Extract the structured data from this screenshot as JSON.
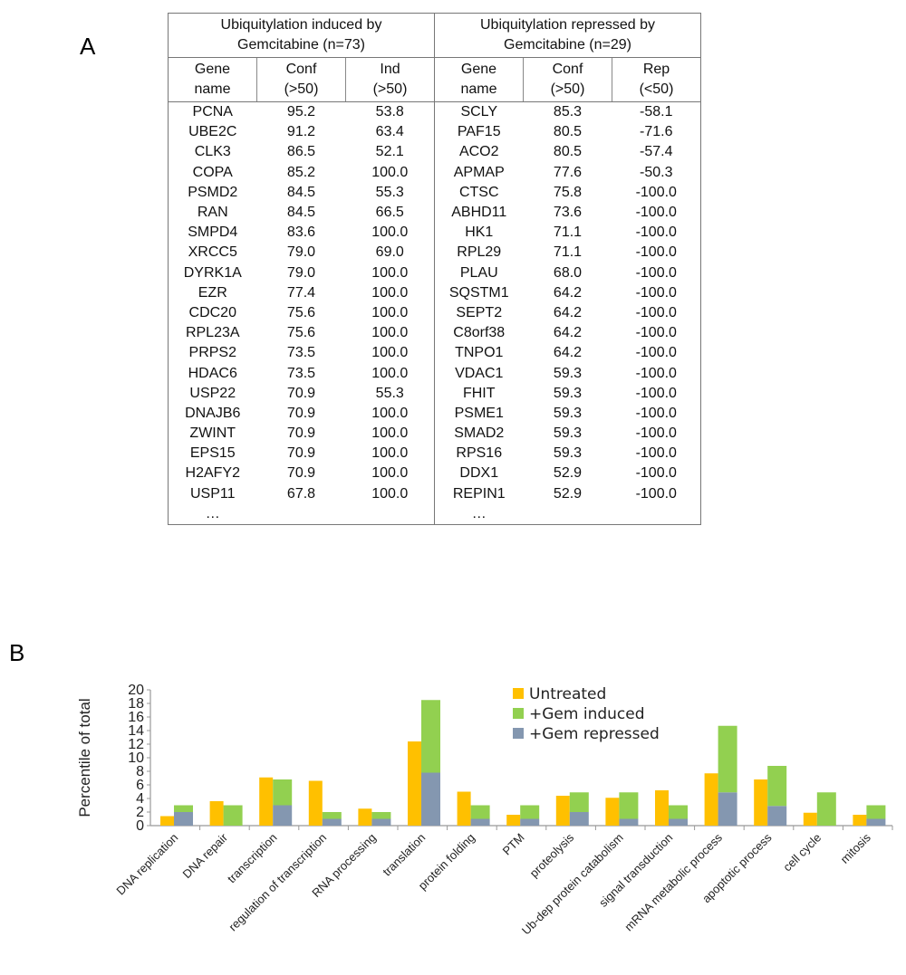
{
  "panels": {
    "a": "A",
    "b": "B"
  },
  "table": {
    "induced_header": "Ubiquitylation induced by Gemcitabine (n=73)",
    "repressed_header": "Ubiquitylation repressed by Gemcitabine (n=29)",
    "columns": [
      [
        "Gene",
        "name"
      ],
      [
        "Conf",
        "(>50)"
      ],
      [
        "Ind",
        "(>50)"
      ],
      [
        "Gene",
        "name"
      ],
      [
        "Conf",
        "(>50)"
      ],
      [
        "Rep",
        "(<50)"
      ]
    ],
    "rows": [
      [
        "PCNA",
        "95.2",
        "53.8",
        "SCLY",
        "85.3",
        "-58.1"
      ],
      [
        "UBE2C",
        "91.2",
        "63.4",
        "PAF15",
        "80.5",
        "-71.6"
      ],
      [
        "CLK3",
        "86.5",
        "52.1",
        "ACO2",
        "80.5",
        "-57.4"
      ],
      [
        "COPA",
        "85.2",
        "100.0",
        "APMAP",
        "77.6",
        "-50.3"
      ],
      [
        "PSMD2",
        "84.5",
        "55.3",
        "CTSC",
        "75.8",
        "-100.0"
      ],
      [
        "RAN",
        "84.5",
        "66.5",
        "ABHD11",
        "73.6",
        "-100.0"
      ],
      [
        "SMPD4",
        "83.6",
        "100.0",
        "HK1",
        "71.1",
        "-100.0"
      ],
      [
        "XRCC5",
        "79.0",
        "69.0",
        "RPL29",
        "71.1",
        "-100.0"
      ],
      [
        "DYRK1A",
        "79.0",
        "100.0",
        "PLAU",
        "68.0",
        "-100.0"
      ],
      [
        "EZR",
        "77.4",
        "100.0",
        "SQSTM1",
        "64.2",
        "-100.0"
      ],
      [
        "CDC20",
        "75.6",
        "100.0",
        "SEPT2",
        "64.2",
        "-100.0"
      ],
      [
        "RPL23A",
        "75.6",
        "100.0",
        "C8orf38",
        "64.2",
        "-100.0"
      ],
      [
        "PRPS2",
        "73.5",
        "100.0",
        "TNPO1",
        "64.2",
        "-100.0"
      ],
      [
        "HDAC6",
        "73.5",
        "100.0",
        "VDAC1",
        "59.3",
        "-100.0"
      ],
      [
        "USP22",
        "70.9",
        "55.3",
        "FHIT",
        "59.3",
        "-100.0"
      ],
      [
        "DNAJB6",
        "70.9",
        "100.0",
        "PSME1",
        "59.3",
        "-100.0"
      ],
      [
        "ZWINT",
        "70.9",
        "100.0",
        "SMAD2",
        "59.3",
        "-100.0"
      ],
      [
        "EPS15",
        "70.9",
        "100.0",
        "RPS16",
        "59.3",
        "-100.0"
      ],
      [
        "H2AFY2",
        "70.9",
        "100.0",
        "DDX1",
        "52.9",
        "-100.0"
      ],
      [
        "USP11",
        "67.8",
        "100.0",
        "REPIN1",
        "52.9",
        "-100.0"
      ],
      [
        "…",
        "",
        "",
        "…",
        "",
        ""
      ]
    ]
  },
  "chart_data": {
    "type": "bar",
    "layout": "grouped + stacked (Gem induced stacked on Gem repressed)",
    "categories": [
      "DNA replication",
      "DNA repair",
      "transcription",
      "regulation of transcription",
      "RNA processing",
      "translation",
      "protein folding",
      "PTM",
      "proteolysis",
      "Ub-dep protein catabolism",
      "signal transduction",
      "mRNA metabolic process",
      "apoptotic process",
      "cell cycle",
      "mitosis"
    ],
    "series": [
      {
        "name": "Untreated",
        "color": "#FFC000",
        "values": [
          1.4,
          3.6,
          7.1,
          6.6,
          2.5,
          12.4,
          5.0,
          1.6,
          4.4,
          4.1,
          5.2,
          7.7,
          6.8,
          1.9,
          1.6
        ]
      },
      {
        "name": "+Gem induced",
        "color": "#92D050",
        "stack": "gem",
        "values": [
          1.0,
          3.0,
          3.8,
          1.0,
          1.0,
          10.7,
          2.0,
          2.0,
          2.9,
          3.9,
          2.0,
          9.8,
          5.9,
          4.9,
          2.0
        ]
      },
      {
        "name": "+Gem repressed",
        "color": "#8497B0",
        "stack": "gem",
        "values": [
          2.0,
          0,
          3.0,
          1.0,
          1.0,
          7.8,
          1.0,
          1.0,
          2.0,
          1.0,
          1.0,
          4.9,
          2.9,
          0,
          1.0
        ]
      }
    ],
    "ylabel": "Percentile of total",
    "xlabel": "",
    "ylim": [
      0,
      20
    ],
    "yticks": [
      "0",
      "2",
      "4",
      "6",
      "8",
      "10",
      "12",
      "14",
      "16",
      "18",
      "20"
    ],
    "grid": false,
    "legend": "top-right"
  }
}
